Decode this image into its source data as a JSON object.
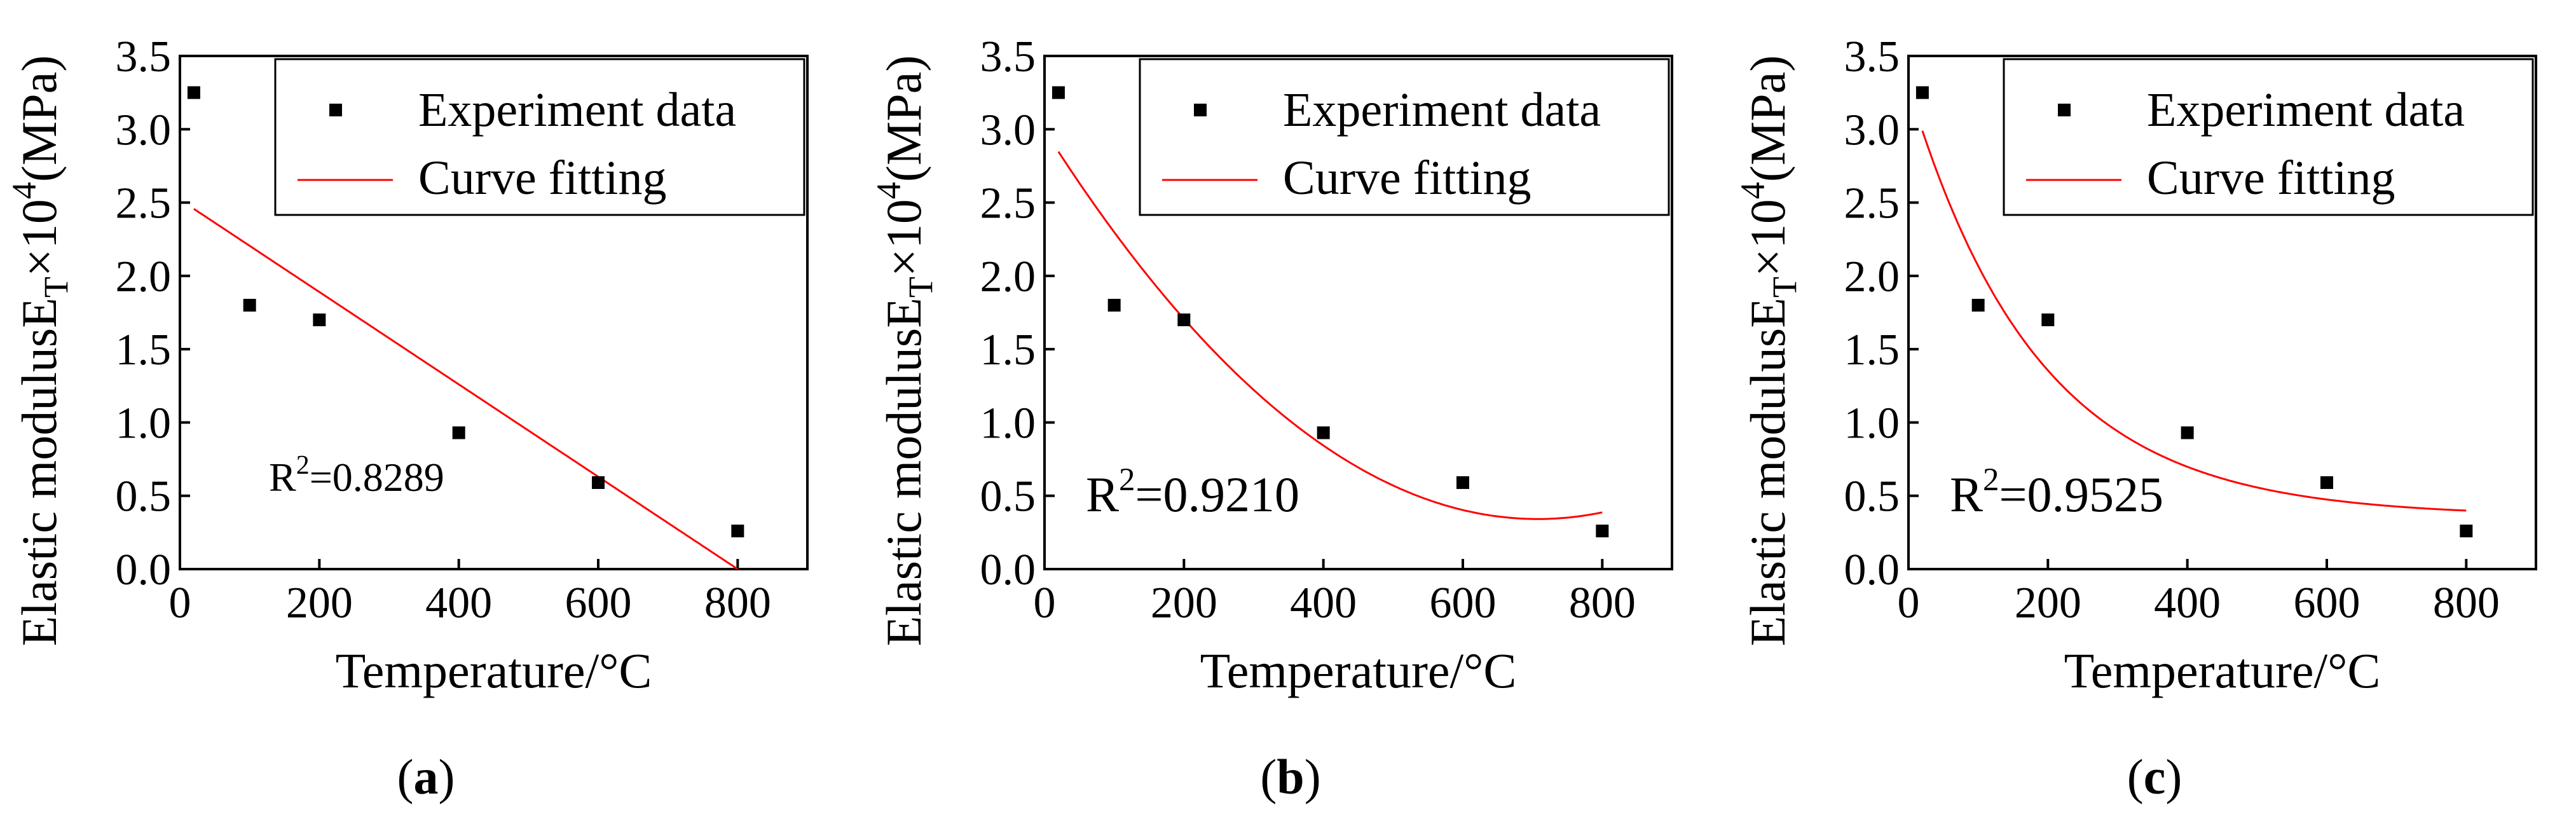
{
  "chart_data": [
    {
      "panel_label": "a",
      "type": "scatter",
      "xlabel": "Temperature/°C",
      "ylabel": {
        "prefix": "Elastic modulusE",
        "sub": "T",
        "mid": "×10",
        "sup": "4",
        "suffix": "(MPa)"
      },
      "xlim": [
        0,
        900
      ],
      "ylim": [
        0,
        3.5
      ],
      "xticks": [
        "0",
        "200",
        "400",
        "600",
        "800"
      ],
      "yticks": [
        "0.0",
        "0.5",
        "1.0",
        "1.5",
        "2.0",
        "2.5",
        "3.0",
        "3.5"
      ],
      "legend": {
        "placement": "top-right",
        "points_label": "Experiment data",
        "fit_label": "Curve fitting"
      },
      "annotation": {
        "r": "R",
        "sup": "2",
        "value": "=0.8289"
      },
      "series": [
        {
          "name": "Experiment data",
          "kind": "points",
          "x": [
            20,
            100,
            200,
            400,
            600,
            800
          ],
          "y": [
            3.25,
            1.8,
            1.7,
            0.93,
            0.59,
            0.26
          ]
        },
        {
          "name": "Curve fitting",
          "kind": "fit",
          "model": "linear",
          "x_range": [
            20,
            800
          ],
          "coef": [
            2.52,
            -0.00315
          ]
        }
      ],
      "colors": {
        "points": "#000000",
        "fit": "#ff0000"
      }
    },
    {
      "panel_label": "b",
      "type": "scatter",
      "xlabel": "Temperature/°C",
      "ylabel": {
        "prefix": "Elastic modulusE",
        "sub": "T",
        "mid": "×10",
        "sup": "4",
        "suffix": "(MPa)"
      },
      "xlim": [
        0,
        900
      ],
      "ylim": [
        0,
        3.5
      ],
      "xticks": [
        "0",
        "200",
        "400",
        "600",
        "800"
      ],
      "yticks": [
        "0.0",
        "0.5",
        "1.0",
        "1.5",
        "2.0",
        "2.5",
        "3.0",
        "3.5"
      ],
      "legend": {
        "placement": "top-right",
        "points_label": "Experiment data",
        "fit_label": "Curve fitting"
      },
      "annotation": {
        "r": "R",
        "sup": "2",
        "value": "=0.9210"
      },
      "series": [
        {
          "name": "Experiment data",
          "kind": "points",
          "x": [
            20,
            100,
            200,
            400,
            600,
            800
          ],
          "y": [
            3.25,
            1.8,
            1.7,
            0.93,
            0.59,
            0.26
          ]
        },
        {
          "name": "Curve fitting",
          "kind": "fit",
          "model": "quadratic",
          "x_range": [
            20,
            800
          ],
          "coef": [
            2.995,
            -0.0075,
            5.3e-06
          ]
        }
      ],
      "colors": {
        "points": "#000000",
        "fit": "#ff0000"
      }
    },
    {
      "panel_label": "c",
      "type": "scatter",
      "xlabel": "Temperature/°C",
      "ylabel": {
        "prefix": "Elastic modulusE",
        "sub": "T",
        "mid": "×10",
        "sup": "4",
        "suffix": "(MPa)"
      },
      "xlim": [
        0,
        900
      ],
      "ylim": [
        0,
        3.5
      ],
      "xticks": [
        "0",
        "200",
        "400",
        "600",
        "800"
      ],
      "yticks": [
        "0.0",
        "0.5",
        "1.0",
        "1.5",
        "2.0",
        "2.5",
        "3.0",
        "3.5"
      ],
      "legend": {
        "placement": "top-right",
        "points_label": "Experiment data",
        "fit_label": "Curve fitting"
      },
      "annotation": {
        "r": "R",
        "sup": "2",
        "value": "=0.9525"
      },
      "series": [
        {
          "name": "Experiment data",
          "kind": "points",
          "x": [
            20,
            100,
            200,
            400,
            600,
            800
          ],
          "y": [
            3.25,
            1.8,
            1.7,
            0.93,
            0.59,
            0.26
          ]
        },
        {
          "name": "Curve fitting",
          "kind": "fit",
          "model": "exponential",
          "x_range": [
            20,
            800
          ],
          "coef": [
            0.36,
            2.93,
            0.0054
          ]
        }
      ],
      "colors": {
        "points": "#000000",
        "fit": "#ff0000"
      }
    }
  ]
}
